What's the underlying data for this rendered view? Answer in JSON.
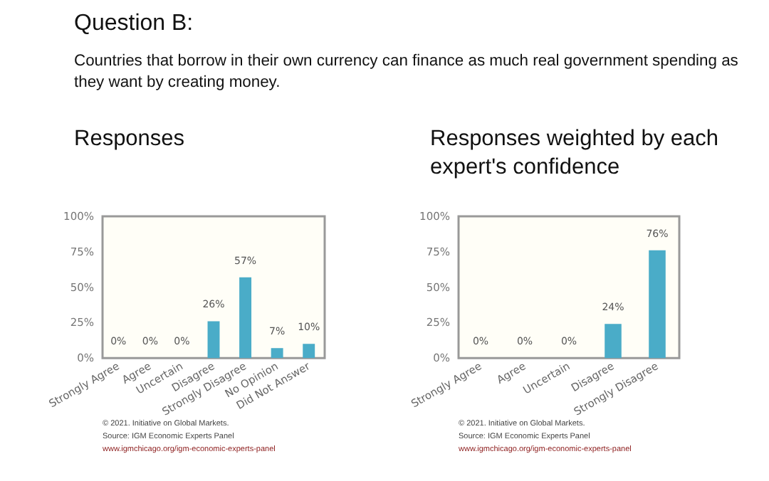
{
  "chart_data": [
    {
      "type": "bar",
      "title": "Responses",
      "annotations": [
        "Question B:",
        "Countries that borrow in their own currency can finance as much real government spending as they want by creating money.",
        "© 2021. Initiative on Global Markets.",
        "Source: IGM Economic Experts Panel",
        "www.igmchicago.org/igm-economic-experts-panel"
      ],
      "categories": [
        "Strongly Agree",
        "Agree",
        "Uncertain",
        "Disagree",
        "Strongly Disagree",
        "No Opinion",
        "Did Not Answer"
      ],
      "values": [
        0,
        0,
        0,
        26,
        57,
        7,
        10
      ],
      "value_labels": [
        "0%",
        "0%",
        "0%",
        "26%",
        "57%",
        "7%",
        "10%"
      ],
      "color": "#4aacc8",
      "ylim": [
        0,
        100
      ],
      "yticks": [
        {
          "value": 0,
          "label": "0%"
        },
        {
          "value": 25,
          "label": "25%"
        },
        {
          "value": 50,
          "label": "50%"
        },
        {
          "value": 75,
          "label": "75%"
        },
        {
          "value": 100,
          "label": "100%"
        }
      ]
    },
    {
      "type": "bar",
      "title": "Responses weighted by each expert's confidence",
      "annotations": [
        "© 2021. Initiative on Global Markets.",
        "Source: IGM Economic Experts Panel",
        "www.igmchicago.org/igm-economic-experts-panel"
      ],
      "categories": [
        "Strongly Agree",
        "Agree",
        "Uncertain",
        "Disagree",
        "Strongly Disagree"
      ],
      "values": [
        0,
        0,
        0,
        24,
        76
      ],
      "value_labels": [
        "0%",
        "0%",
        "0%",
        "24%",
        "76%"
      ],
      "color": "#4aacc8",
      "ylim": [
        0,
        100
      ],
      "yticks": [
        {
          "value": 0,
          "label": "0%"
        },
        {
          "value": 25,
          "label": "25%"
        },
        {
          "value": 50,
          "label": "50%"
        },
        {
          "value": 75,
          "label": "75%"
        },
        {
          "value": 100,
          "label": "100%"
        }
      ]
    }
  ]
}
